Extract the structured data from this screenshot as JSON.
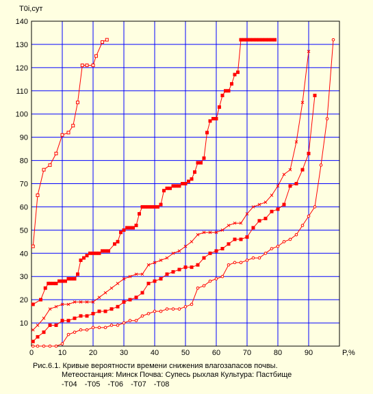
{
  "chart_data": {
    "type": "line",
    "ylabel": "T0i,сут",
    "xlabel": "P,%",
    "xlim": [
      0,
      100
    ],
    "ylim": [
      0,
      140
    ],
    "xticks": [
      0,
      10,
      20,
      30,
      40,
      50,
      60,
      70,
      80,
      90
    ],
    "yticks": [
      10,
      20,
      30,
      40,
      50,
      60,
      70,
      80,
      90,
      100,
      110,
      120,
      130,
      140
    ],
    "grid": true,
    "series": [
      {
        "name": "T04",
        "marker": "square-open",
        "x": [
          0.5,
          2,
          4,
          6,
          8,
          10,
          12,
          13.5,
          15,
          16.5,
          18,
          20,
          21,
          23,
          24.5
        ],
        "y": [
          43,
          65,
          76,
          78,
          83,
          91,
          92,
          95,
          105,
          121,
          121,
          121,
          125,
          131,
          132
        ]
      },
      {
        "name": "T05",
        "marker": "square-filled",
        "x": [
          0.5,
          3,
          4.5,
          5.5,
          6,
          7,
          8,
          9,
          10,
          11,
          12,
          13,
          14,
          15,
          16,
          17,
          18,
          19,
          20,
          21,
          22,
          23,
          24,
          25,
          27,
          28,
          29,
          30,
          31,
          32,
          33,
          34,
          35,
          36,
          37,
          38,
          39,
          40,
          41,
          42,
          43,
          44,
          45,
          46,
          47,
          48,
          49,
          50,
          51,
          52,
          53,
          54,
          55,
          56,
          57,
          58,
          59,
          60,
          61,
          62,
          63,
          64,
          65,
          66,
          67,
          68,
          69,
          70,
          71,
          72,
          73,
          74,
          75,
          76,
          77,
          78,
          79
        ],
        "y": [
          18,
          20,
          25,
          27,
          27,
          27,
          27,
          28,
          28,
          28,
          29,
          29,
          29,
          31,
          37,
          38,
          39,
          40,
          40,
          40,
          40,
          41,
          41,
          41,
          44,
          45,
          49,
          50,
          51,
          51,
          51,
          52,
          57,
          60,
          60,
          60,
          60,
          60,
          60,
          61,
          67,
          68,
          68,
          69,
          69,
          69,
          70,
          70,
          71,
          72,
          75,
          79,
          79,
          81,
          92,
          97,
          98,
          98,
          103,
          108,
          110,
          110,
          113,
          117,
          118,
          132,
          132,
          132,
          132,
          132,
          132,
          132,
          132,
          132,
          132,
          132,
          132
        ]
      },
      {
        "name": "T06",
        "marker": "cross",
        "x": [
          0.5,
          2,
          4,
          6,
          8,
          10,
          12,
          14,
          16,
          18,
          20,
          22,
          24,
          26,
          28,
          30,
          32,
          34,
          36,
          38,
          40,
          42,
          44,
          46,
          48,
          50,
          52,
          54,
          56,
          58,
          60,
          62,
          64,
          66,
          68,
          70,
          72,
          74,
          76,
          78,
          80,
          82,
          84,
          86,
          88,
          90
        ],
        "y": [
          7,
          9,
          12,
          16,
          17,
          18,
          18,
          19,
          19,
          19,
          19,
          21,
          23,
          25,
          27,
          29,
          30,
          31,
          31,
          35,
          36,
          37,
          38,
          40,
          41,
          43,
          45,
          48,
          49,
          49,
          49,
          50,
          52,
          53,
          53,
          57,
          60,
          61,
          62,
          65,
          69,
          74,
          76,
          88,
          105,
          127
        ]
      },
      {
        "name": "T07",
        "marker": "square-filled",
        "x": [
          0.5,
          2,
          4,
          6,
          8,
          10,
          12,
          14,
          16,
          18,
          20,
          22,
          24,
          26,
          28,
          30,
          32,
          34,
          36,
          38,
          40,
          42,
          44,
          46,
          48,
          50,
          52,
          54,
          56,
          58,
          60,
          62,
          64,
          66,
          68,
          70,
          72,
          74,
          76,
          78,
          80,
          82,
          84,
          86,
          88,
          90,
          92
        ],
        "y": [
          2,
          4,
          6,
          9,
          9,
          11,
          11,
          12,
          13,
          13,
          14,
          15,
          15,
          16,
          17,
          19,
          20,
          21,
          23,
          27,
          28,
          29,
          31,
          32,
          33,
          34,
          34,
          35,
          38,
          40,
          41,
          42,
          44,
          46,
          46,
          47,
          51,
          54,
          55,
          58,
          59,
          61,
          69,
          70,
          76,
          83,
          108
        ]
      },
      {
        "name": "T08",
        "marker": "circle-open",
        "x": [
          0.5,
          2,
          4,
          6,
          8,
          10,
          12,
          14,
          16,
          18,
          20,
          22,
          24,
          26,
          28,
          30,
          32,
          34,
          36,
          38,
          40,
          42,
          44,
          46,
          48,
          50,
          52,
          54,
          56,
          58,
          60,
          62,
          64,
          66,
          68,
          70,
          72,
          74,
          76,
          78,
          80,
          82,
          84,
          86,
          88,
          90,
          92,
          94,
          96,
          98
        ],
        "y": [
          0,
          0,
          0,
          0,
          0,
          1,
          5,
          6,
          7,
          7,
          8,
          8,
          8,
          9,
          9,
          10,
          11,
          11,
          13,
          14,
          15,
          15,
          16,
          16,
          16,
          17,
          18,
          25,
          26,
          28,
          29,
          30,
          35,
          36,
          36,
          37,
          38,
          38,
          40,
          42,
          43,
          45,
          46,
          48,
          52,
          56,
          60,
          78,
          98,
          132
        ]
      }
    ]
  },
  "caption": {
    "line1": "Рис.6.1. Кривые вероятности времени снижения влагозапасов почвы.",
    "line2": "Метеостанция: Минск    Почва: Супесь рыхлая   Культура: Пастбище"
  },
  "legend": [
    "-T04",
    "-T05",
    "-T06",
    "-T07",
    "-T08"
  ],
  "colors": {
    "grid": "#0000ff",
    "series": "#ff0000",
    "background": "#ffffe1"
  }
}
